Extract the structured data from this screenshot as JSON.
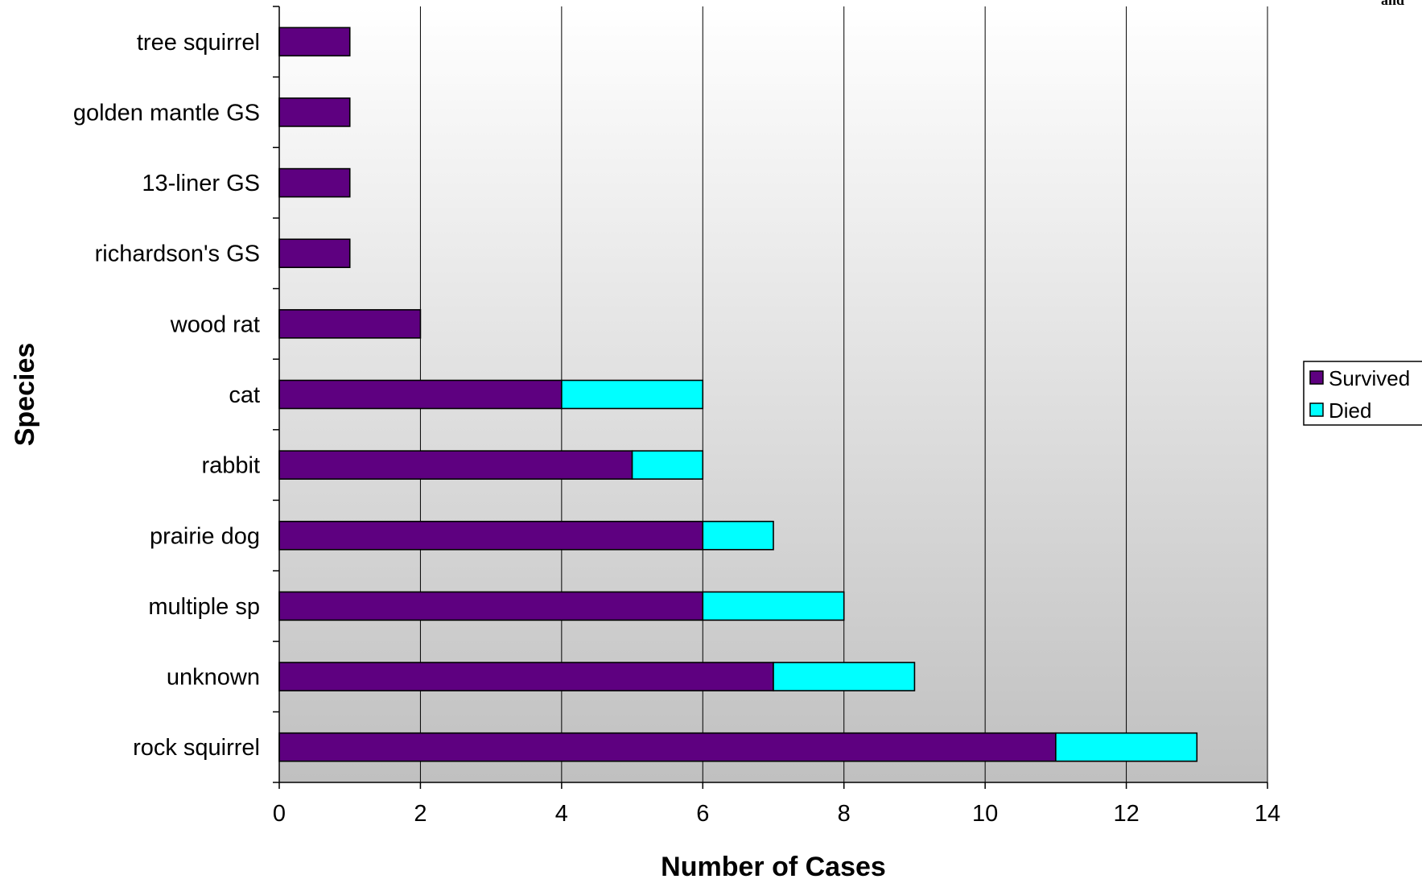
{
  "chart_data": {
    "type": "bar",
    "orientation": "horizontal",
    "stacked": true,
    "title": "",
    "xlabel": "Number of Cases",
    "ylabel": "Species",
    "categories": [
      "rock squirrel",
      "unknown",
      "multiple sp",
      "prairie dog",
      "rabbit",
      "cat",
      "wood rat",
      "richardson's GS",
      "13-liner GS",
      "golden mantle GS",
      "tree squirrel"
    ],
    "series": [
      {
        "name": "Survived",
        "color": "#5e0080",
        "values": [
          11,
          7,
          6,
          6,
          5,
          4,
          2,
          1,
          1,
          1,
          1
        ]
      },
      {
        "name": "Died",
        "color": "#00ffff",
        "values": [
          2,
          2,
          2,
          1,
          1,
          2,
          0,
          0,
          0,
          0,
          0
        ]
      }
    ],
    "xlim": [
      0,
      14
    ],
    "xticks": [
      "0",
      "2",
      "4",
      "6",
      "8",
      "10",
      "12",
      "14"
    ],
    "grid": "vertical",
    "legend_position": "right",
    "corner_text": "and"
  }
}
